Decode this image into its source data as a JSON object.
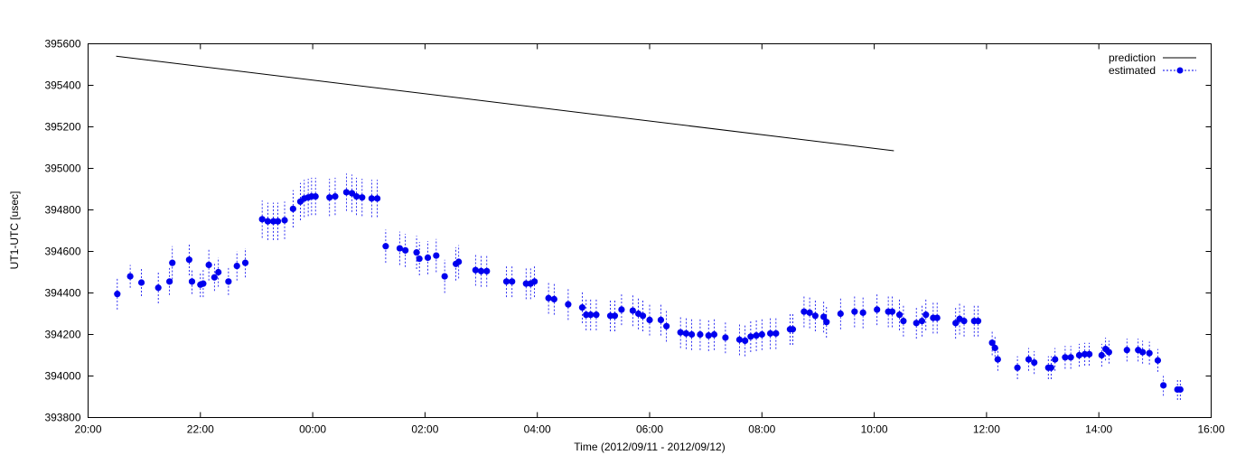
{
  "chart_data": {
    "type": "scatter",
    "xlabel": "Time (2012/09/11 - 2012/09/12)",
    "ylabel": "UT1-UTC [usec]",
    "xlim_hours": [
      20,
      40
    ],
    "ylim": [
      393800,
      395600
    ],
    "x_ticks": [
      "20:00",
      "22:00",
      "00:00",
      "02:00",
      "04:00",
      "06:00",
      "08:00",
      "10:00",
      "12:00",
      "14:00",
      "16:00"
    ],
    "y_ticks": [
      "393800",
      "394000",
      "394200",
      "394400",
      "394600",
      "394800",
      "395000",
      "395200",
      "395400",
      "395600"
    ],
    "grid": false,
    "legend_position": "top-right",
    "colors": {
      "prediction": "#000000",
      "estimated": "#0000ee"
    },
    "series": [
      {
        "name": "prediction",
        "style": "line",
        "points": [
          [
            20.5,
            395540
          ],
          [
            34.35,
            395085
          ]
        ]
      },
      {
        "name": "estimated",
        "style": "points-with-errorbars",
        "points": [
          [
            20.52,
            394395,
            75
          ],
          [
            20.75,
            394480,
            55
          ],
          [
            20.95,
            394450,
            65
          ],
          [
            21.25,
            394425,
            75
          ],
          [
            21.45,
            394455,
            65
          ],
          [
            21.5,
            394545,
            80
          ],
          [
            21.8,
            394560,
            75
          ],
          [
            21.85,
            394455,
            60
          ],
          [
            22.0,
            394440,
            60
          ],
          [
            22.05,
            394445,
            65
          ],
          [
            22.15,
            394535,
            75
          ],
          [
            22.25,
            394475,
            65
          ],
          [
            22.32,
            394500,
            70
          ],
          [
            22.5,
            394455,
            65
          ],
          [
            22.65,
            394530,
            70
          ],
          [
            22.8,
            394545,
            70
          ],
          [
            23.1,
            394755,
            90
          ],
          [
            23.2,
            394745,
            90
          ],
          [
            23.3,
            394745,
            90
          ],
          [
            23.38,
            394745,
            90
          ],
          [
            23.5,
            394750,
            90
          ],
          [
            23.65,
            394805,
            90
          ],
          [
            23.78,
            394840,
            90
          ],
          [
            23.85,
            394855,
            90
          ],
          [
            23.92,
            394860,
            90
          ],
          [
            23.98,
            394865,
            90
          ],
          [
            24.05,
            394865,
            90
          ],
          [
            24.3,
            394860,
            90
          ],
          [
            24.4,
            394865,
            90
          ],
          [
            24.6,
            394885,
            90
          ],
          [
            24.7,
            394880,
            90
          ],
          [
            24.78,
            394865,
            90
          ],
          [
            24.88,
            394860,
            90
          ],
          [
            25.05,
            394855,
            90
          ],
          [
            25.15,
            394855,
            90
          ],
          [
            25.3,
            394625,
            80
          ],
          [
            25.55,
            394615,
            80
          ],
          [
            25.65,
            394605,
            80
          ],
          [
            25.85,
            394595,
            80
          ],
          [
            25.9,
            394565,
            80
          ],
          [
            26.05,
            394570,
            80
          ],
          [
            26.2,
            394580,
            80
          ],
          [
            26.35,
            394480,
            80
          ],
          [
            26.55,
            394540,
            80
          ],
          [
            26.6,
            394550,
            80
          ],
          [
            26.9,
            394510,
            75
          ],
          [
            27.0,
            394505,
            75
          ],
          [
            27.1,
            394505,
            75
          ],
          [
            27.45,
            394455,
            75
          ],
          [
            27.55,
            394455,
            75
          ],
          [
            27.8,
            394445,
            75
          ],
          [
            27.88,
            394445,
            75
          ],
          [
            27.95,
            394455,
            75
          ],
          [
            28.2,
            394375,
            75
          ],
          [
            28.3,
            394370,
            75
          ],
          [
            28.55,
            394345,
            75
          ],
          [
            28.8,
            394330,
            75
          ],
          [
            28.87,
            394295,
            75
          ],
          [
            28.95,
            394295,
            75
          ],
          [
            29.05,
            394295,
            75
          ],
          [
            29.3,
            394290,
            75
          ],
          [
            29.38,
            394290,
            75
          ],
          [
            29.5,
            394320,
            75
          ],
          [
            29.7,
            394315,
            75
          ],
          [
            29.8,
            394300,
            75
          ],
          [
            29.88,
            394290,
            75
          ],
          [
            30.0,
            394270,
            75
          ],
          [
            30.2,
            394270,
            75
          ],
          [
            30.3,
            394240,
            75
          ],
          [
            30.55,
            394210,
            75
          ],
          [
            30.65,
            394205,
            75
          ],
          [
            30.75,
            394200,
            75
          ],
          [
            30.9,
            394200,
            75
          ],
          [
            31.05,
            394195,
            75
          ],
          [
            31.15,
            394200,
            75
          ],
          [
            31.35,
            394185,
            75
          ],
          [
            31.6,
            394175,
            75
          ],
          [
            31.7,
            394170,
            75
          ],
          [
            31.8,
            394190,
            75
          ],
          [
            31.9,
            394195,
            75
          ],
          [
            32.0,
            394200,
            75
          ],
          [
            32.15,
            394205,
            75
          ],
          [
            32.25,
            394205,
            75
          ],
          [
            32.5,
            394225,
            75
          ],
          [
            32.55,
            394225,
            75
          ],
          [
            32.75,
            394310,
            75
          ],
          [
            32.85,
            394305,
            75
          ],
          [
            32.95,
            394290,
            75
          ],
          [
            33.1,
            394285,
            75
          ],
          [
            33.15,
            394260,
            75
          ],
          [
            33.4,
            394300,
            75
          ],
          [
            33.65,
            394310,
            75
          ],
          [
            33.8,
            394305,
            75
          ],
          [
            34.05,
            394320,
            75
          ],
          [
            34.25,
            394310,
            75
          ],
          [
            34.32,
            394310,
            75
          ],
          [
            34.45,
            394295,
            75
          ],
          [
            34.52,
            394265,
            75
          ],
          [
            34.75,
            394255,
            75
          ],
          [
            34.85,
            394265,
            75
          ],
          [
            34.92,
            394295,
            75
          ],
          [
            35.05,
            394280,
            75
          ],
          [
            35.12,
            394280,
            75
          ],
          [
            35.45,
            394255,
            75
          ],
          [
            35.52,
            394275,
            75
          ],
          [
            35.6,
            394265,
            75
          ],
          [
            35.78,
            394265,
            75
          ],
          [
            35.85,
            394265,
            75
          ],
          [
            36.1,
            394160,
            60
          ],
          [
            36.15,
            394135,
            60
          ],
          [
            36.2,
            394080,
            55
          ],
          [
            36.55,
            394040,
            55
          ],
          [
            36.75,
            394080,
            55
          ],
          [
            36.85,
            394065,
            55
          ],
          [
            37.1,
            394040,
            55
          ],
          [
            37.15,
            394040,
            55
          ],
          [
            37.22,
            394080,
            55
          ],
          [
            37.4,
            394090,
            55
          ],
          [
            37.5,
            394090,
            55
          ],
          [
            37.65,
            394100,
            55
          ],
          [
            37.75,
            394105,
            55
          ],
          [
            37.83,
            394105,
            55
          ],
          [
            38.05,
            394100,
            55
          ],
          [
            38.12,
            394130,
            55
          ],
          [
            38.18,
            394115,
            55
          ],
          [
            38.5,
            394125,
            55
          ],
          [
            38.7,
            394125,
            55
          ],
          [
            38.78,
            394115,
            55
          ],
          [
            38.9,
            394110,
            55
          ],
          [
            39.05,
            394075,
            55
          ],
          [
            39.15,
            393955,
            50
          ],
          [
            39.4,
            393935,
            50
          ],
          [
            39.45,
            393935,
            50
          ]
        ]
      }
    ]
  }
}
